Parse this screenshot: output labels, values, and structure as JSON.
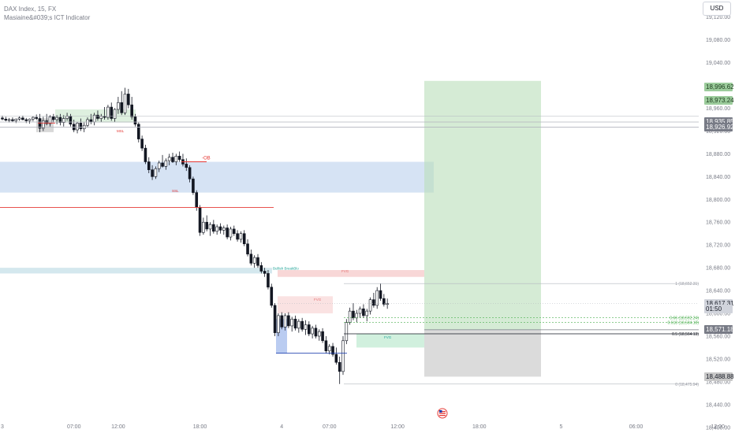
{
  "header": {
    "title": "DAX Index, 15, FX",
    "indicator": "Masiaine&#039;s ICT Indicator",
    "currency": "USD"
  },
  "chart_data": {
    "type": "candlestick",
    "price_axis": {
      "ticks": [
        18400,
        18440,
        18480,
        18520,
        18560,
        18600,
        18640,
        18680,
        18720,
        18760,
        18800,
        18840,
        18880,
        18920,
        18960,
        19000,
        19040,
        19080,
        19120
      ],
      "labels": [
        "18,400.00",
        "18,440.00",
        "18,480.00",
        "18,520.00",
        "18,560.00",
        "18,600.00",
        "18,640.00",
        "18,680.00",
        "18,720.00",
        "18,760.00",
        "18,800.00",
        "18,840.00",
        "18,880.00",
        "18,920.00",
        "18,960.00",
        "19,000.00",
        "19,040.00",
        "19,080.00",
        "19,120.00"
      ]
    },
    "time_axis": {
      "labels": [
        "3",
        "07:00",
        "12:00",
        "18:00",
        "4",
        "07:00",
        "12:00",
        "18:00",
        "5",
        "06:00",
        "12:00"
      ],
      "bar_index": [
        0,
        21,
        34,
        58,
        82,
        96,
        116,
        140,
        164,
        186,
        210
      ]
    },
    "ylim": [
      18390,
      19150
    ],
    "price_tags": [
      {
        "text": "18,996.62",
        "price": 18996.62,
        "bg": "#9ccc9c",
        "fg": "#1b3b1b"
      },
      {
        "text": "18,973.24",
        "price": 18973.24,
        "bg": "#9ccc9c",
        "fg": "#1b3b1b"
      },
      {
        "text": "18,935.85",
        "price": 18935.85,
        "bg": "#787b86",
        "fg": "#ffffff"
      },
      {
        "text": "18,926.92",
        "price": 18926.92,
        "bg": "#787b86",
        "fg": "#ffffff"
      },
      {
        "text": "18,617.31",
        "price": 18617.31,
        "bg": "#d1d4dc",
        "fg": "#131722"
      },
      {
        "text": "01:50",
        "price": 18607,
        "bg": "#d1d4dc",
        "fg": "#131722"
      },
      {
        "text": "18,571.18",
        "price": 18571.18,
        "bg": "#787b86",
        "fg": "#ffffff"
      },
      {
        "text": "18,488.88",
        "price": 18488.88,
        "bg": "#c8c8c8",
        "fg": "#131722"
      }
    ],
    "fib_labels": [
      {
        "text": "1 (18,652.31)",
        "price": 18652.31,
        "color": "#9598a1"
      },
      {
        "text": "0.66 (18,592.24)",
        "price": 18592.24,
        "color": "#4caf50"
      },
      {
        "text": "0.618 (18,584.18)",
        "price": 18584.18,
        "color": "#4caf50"
      },
      {
        "text": "0.5 (18,564.13)",
        "price": 18564.13,
        "color": "#131722"
      },
      {
        "text": "0 (18,475.94)",
        "price": 18475.94,
        "color": "#9598a1"
      }
    ],
    "annotations": [
      {
        "text": "-OB",
        "color": "#e53935"
      },
      {
        "text": "FVG",
        "color": "#e57373"
      },
      {
        "text": "FVG",
        "color": "#e57373"
      },
      {
        "text": "FVG",
        "color": "#26a69a"
      },
      {
        "text": "Bullish BreakBlo",
        "color": "#26a69a"
      },
      {
        "text": "MSL",
        "color": "#e53935"
      },
      {
        "text": "SSL",
        "color": "#e53935"
      }
    ],
    "series": [
      {
        "values": [
          [
            18943,
            18947,
            18939,
            18941
          ],
          [
            18941,
            18945,
            18937,
            18939
          ],
          [
            18939,
            18943,
            18935,
            18940
          ],
          [
            18940,
            18944,
            18936,
            18938
          ],
          [
            18938,
            18942,
            18934,
            18941
          ],
          [
            18941,
            18946,
            18938,
            18943
          ],
          [
            18943,
            18947,
            18939,
            18940
          ],
          [
            18940,
            18943,
            18934,
            18938
          ],
          [
            18938,
            18942,
            18933,
            18941
          ],
          [
            18941,
            18946,
            18937,
            18944
          ],
          [
            18944,
            18949,
            18940,
            18942
          ],
          [
            18942,
            18950,
            18918,
            18925
          ],
          [
            18925,
            18945,
            18920,
            18938
          ],
          [
            18938,
            18950,
            18930,
            18933
          ],
          [
            18933,
            18948,
            18928,
            18945
          ],
          [
            18945,
            18950,
            18935,
            18940
          ],
          [
            18940,
            18948,
            18932,
            18944
          ],
          [
            18944,
            18950,
            18930,
            18935
          ],
          [
            18935,
            18948,
            18928,
            18942
          ],
          [
            18942,
            18952,
            18938,
            18946
          ],
          [
            18946,
            18950,
            18928,
            18932
          ],
          [
            18932,
            18940,
            18918,
            18922
          ],
          [
            18922,
            18936,
            18916,
            18934
          ],
          [
            18934,
            18942,
            18920,
            18924
          ],
          [
            18924,
            18935,
            18918,
            18930
          ],
          [
            18930,
            18944,
            18926,
            18940
          ],
          [
            18940,
            18950,
            18932,
            18936
          ],
          [
            18936,
            18952,
            18930,
            18948
          ],
          [
            18948,
            18956,
            18938,
            18942
          ],
          [
            18942,
            18950,
            18936,
            18946
          ],
          [
            18946,
            18962,
            18940,
            18944
          ],
          [
            18944,
            18966,
            18940,
            18962
          ],
          [
            18962,
            18970,
            18938,
            18942
          ],
          [
            18942,
            18960,
            18936,
            18958
          ],
          [
            18958,
            18980,
            18950,
            18970
          ],
          [
            18970,
            18990,
            18948,
            18952
          ],
          [
            18952,
            18996,
            18948,
            18985
          ],
          [
            18985,
            18994,
            18960,
            18966
          ],
          [
            18966,
            18980,
            18940,
            18945
          ],
          [
            18945,
            18950,
            18928,
            18932
          ],
          [
            18932,
            18935,
            18900,
            18906
          ],
          [
            18906,
            18912,
            18885,
            18890
          ],
          [
            18890,
            18896,
            18862,
            18866
          ],
          [
            18866,
            18874,
            18846,
            18852
          ],
          [
            18852,
            18860,
            18834,
            18840
          ],
          [
            18840,
            18858,
            18836,
            18854
          ],
          [
            18854,
            18868,
            18848,
            18864
          ],
          [
            18864,
            18878,
            18856,
            18858
          ],
          [
            18858,
            18872,
            18852,
            18868
          ],
          [
            18868,
            18880,
            18860,
            18874
          ],
          [
            18874,
            18882,
            18864,
            18866
          ],
          [
            18866,
            18880,
            18860,
            18876
          ],
          [
            18876,
            18884,
            18866,
            18870
          ],
          [
            18870,
            18880,
            18858,
            18862
          ],
          [
            18862,
            18872,
            18850,
            18856
          ],
          [
            18856,
            18860,
            18830,
            18836
          ],
          [
            18836,
            18840,
            18808,
            18812
          ],
          [
            18812,
            18816,
            18780,
            18786
          ],
          [
            18786,
            18790,
            18736,
            18742
          ],
          [
            18742,
            18768,
            18738,
            18760
          ],
          [
            18760,
            18772,
            18744,
            18748
          ],
          [
            18748,
            18760,
            18736,
            18756
          ],
          [
            18756,
            18764,
            18740,
            18744
          ],
          [
            18744,
            18756,
            18738,
            18752
          ],
          [
            18752,
            18758,
            18740,
            18746
          ],
          [
            18746,
            18754,
            18738,
            18750
          ],
          [
            18750,
            18756,
            18730,
            18734
          ],
          [
            18734,
            18752,
            18728,
            18748
          ],
          [
            18748,
            18754,
            18736,
            18740
          ],
          [
            18740,
            18746,
            18726,
            18730
          ],
          [
            18730,
            18744,
            18724,
            18740
          ],
          [
            18740,
            18746,
            18718,
            18722
          ],
          [
            18722,
            18730,
            18700,
            18704
          ],
          [
            18704,
            18712,
            18684,
            18688
          ],
          [
            18688,
            18702,
            18680,
            18698
          ],
          [
            18698,
            18704,
            18680,
            18684
          ],
          [
            18684,
            18690,
            18670,
            18674
          ],
          [
            18674,
            18680,
            18664,
            18670
          ],
          [
            18670,
            18676,
            18642,
            18646
          ],
          [
            18646,
            18652,
            18610,
            18614
          ],
          [
            18614,
            18618,
            18560,
            18566
          ],
          [
            18566,
            18600,
            18560,
            18596
          ],
          [
            18596,
            18602,
            18572,
            18576
          ],
          [
            18576,
            18600,
            18570,
            18596
          ],
          [
            18596,
            18602,
            18574,
            18578
          ],
          [
            18578,
            18594,
            18568,
            18590
          ],
          [
            18590,
            18596,
            18570,
            18574
          ],
          [
            18574,
            18590,
            18566,
            18586
          ],
          [
            18586,
            18592,
            18568,
            18572
          ],
          [
            18572,
            18588,
            18562,
            18580
          ],
          [
            18580,
            18586,
            18560,
            18564
          ],
          [
            18564,
            18578,
            18556,
            18574
          ],
          [
            18574,
            18580,
            18556,
            18560
          ],
          [
            18560,
            18572,
            18552,
            18568
          ],
          [
            18568,
            18574,
            18548,
            18552
          ],
          [
            18552,
            18560,
            18530,
            18534
          ],
          [
            18534,
            18546,
            18528,
            18542
          ],
          [
            18542,
            18548,
            18524,
            18528
          ],
          [
            18528,
            18540,
            18510,
            18514
          ],
          [
            18514,
            18524,
            18476,
            18498
          ],
          [
            18498,
            18560,
            18492,
            18552
          ],
          [
            18552,
            18590,
            18546,
            18584
          ],
          [
            18584,
            18610,
            18580,
            18604
          ],
          [
            18604,
            18618,
            18588,
            18592
          ],
          [
            18592,
            18606,
            18584,
            18600
          ],
          [
            18600,
            18612,
            18592,
            18608
          ],
          [
            18608,
            18616,
            18592,
            18596
          ],
          [
            18596,
            18608,
            18586,
            18604
          ],
          [
            18604,
            18628,
            18598,
            18624
          ],
          [
            18624,
            18636,
            18610,
            18614
          ],
          [
            18614,
            18646,
            18608,
            18640
          ],
          [
            18640,
            18652,
            18622,
            18626
          ],
          [
            18626,
            18634,
            18612,
            18616
          ],
          [
            18616,
            18626,
            18608,
            18617
          ]
        ]
      }
    ]
  }
}
